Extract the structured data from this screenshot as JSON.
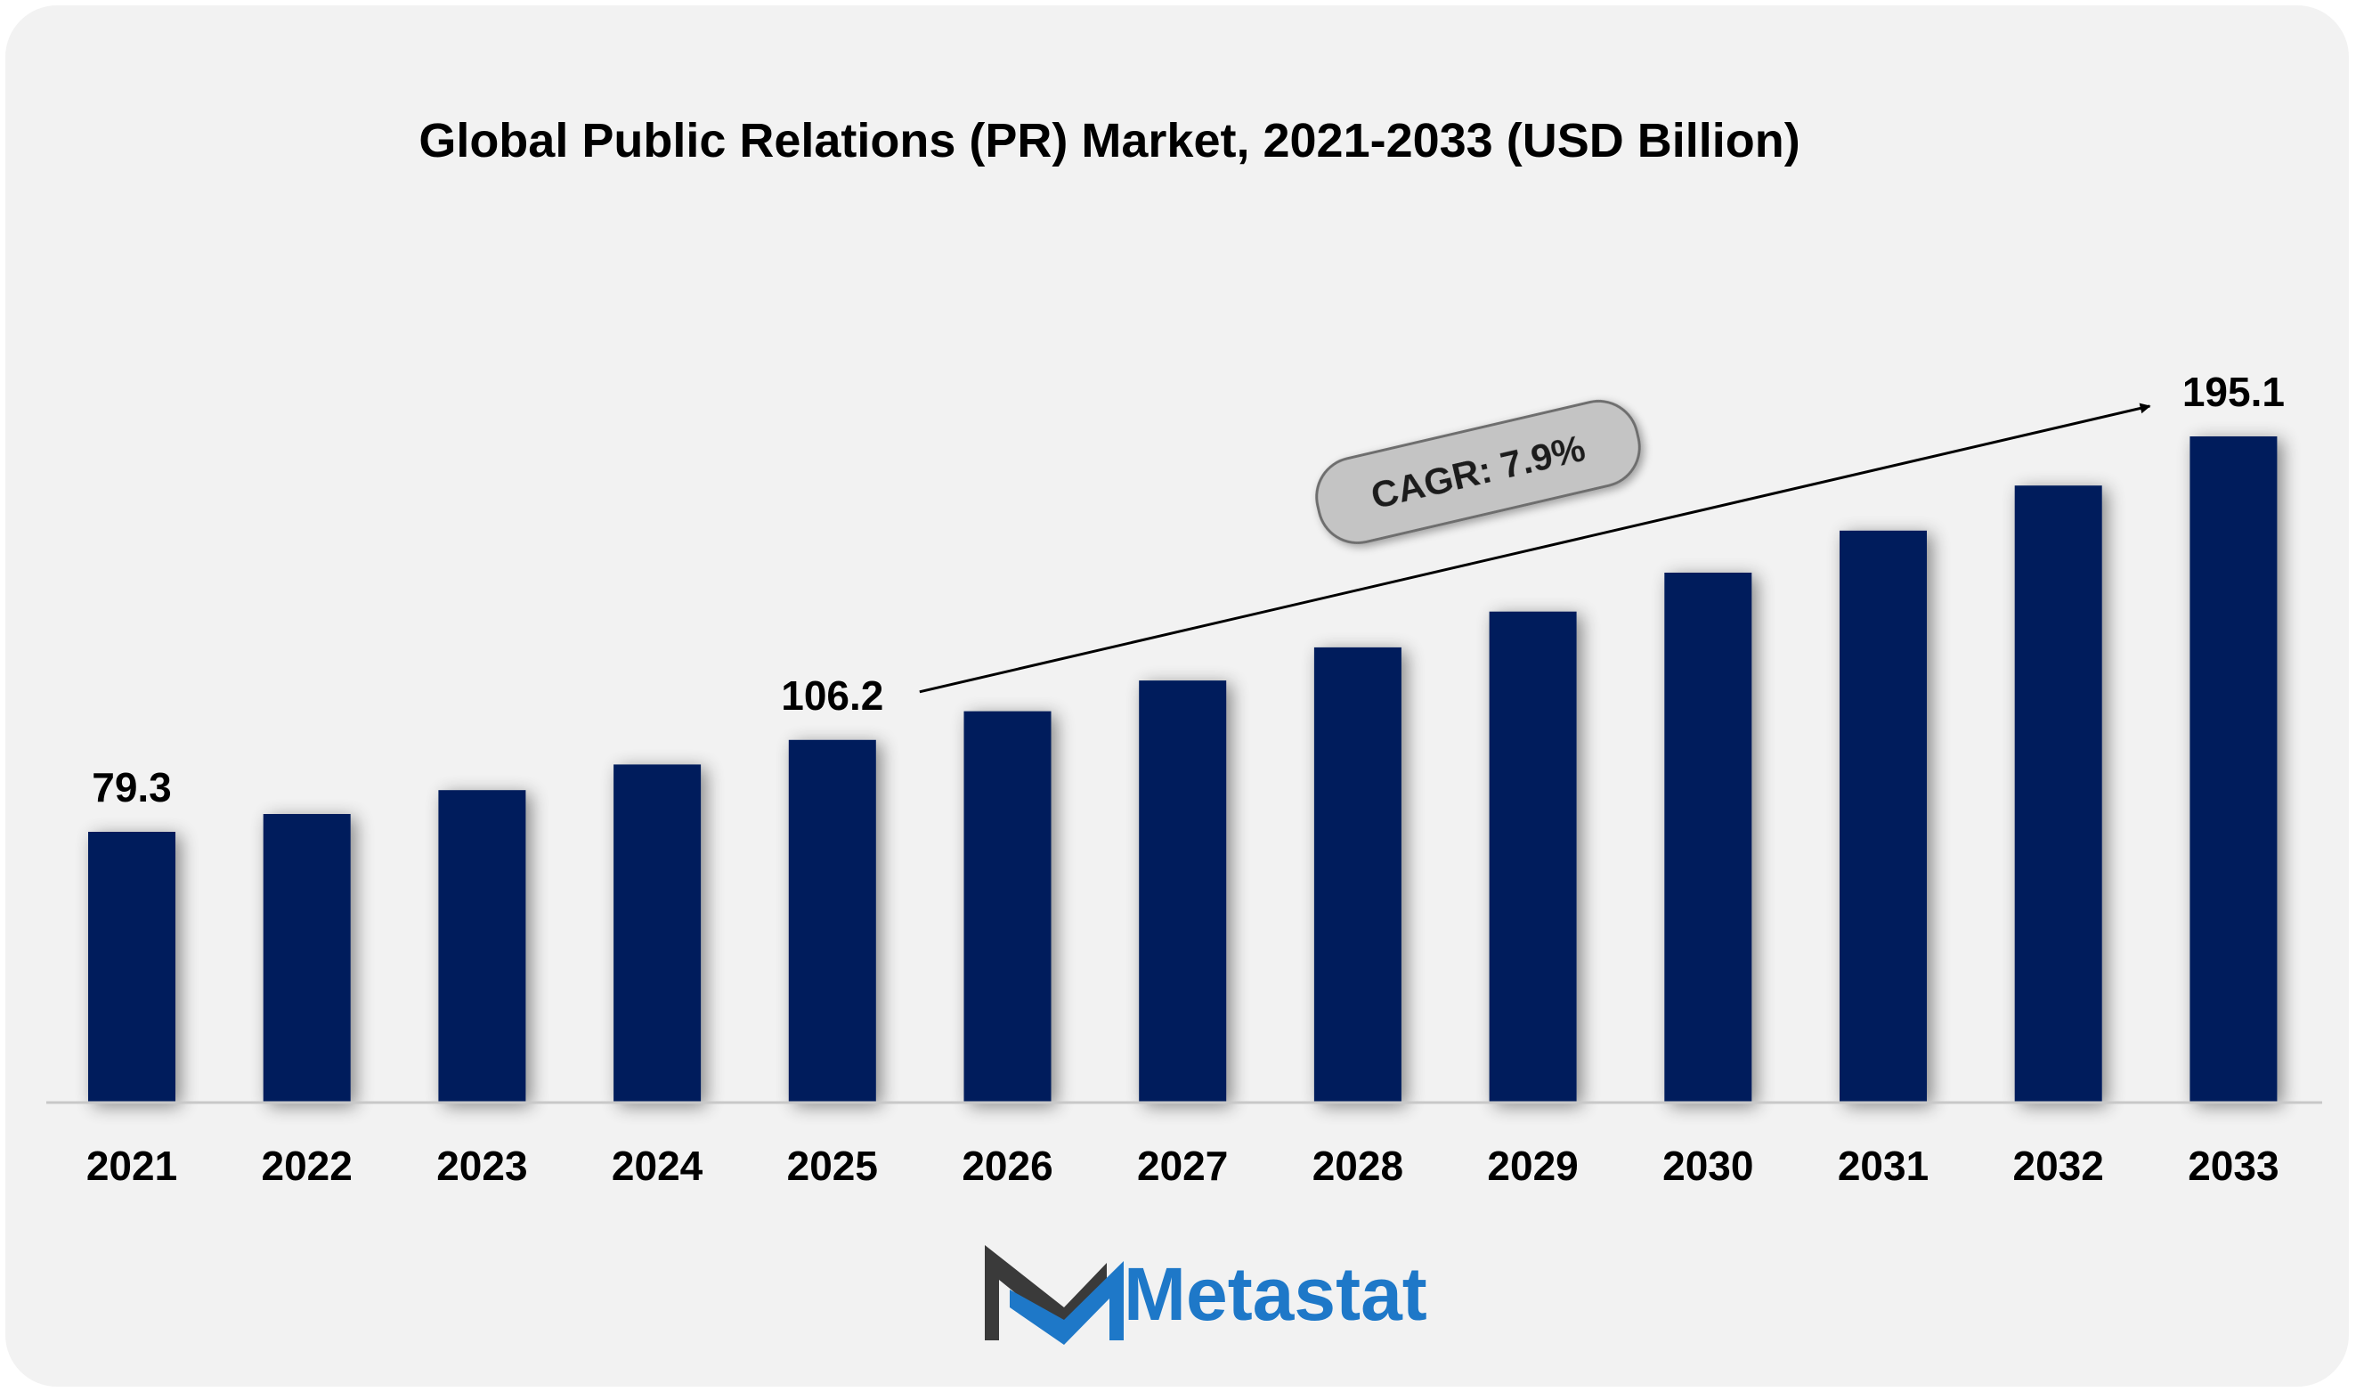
{
  "chart_data": {
    "type": "bar",
    "title": "Global Public Relations (PR) Market, 2021-2033 (USD Billion)",
    "xlabel": "",
    "ylabel": "",
    "categories": [
      "2021",
      "2022",
      "2023",
      "2024",
      "2025",
      "2026",
      "2027",
      "2028",
      "2029",
      "2030",
      "2031",
      "2032",
      "2033"
    ],
    "values": [
      79.3,
      84.5,
      91.5,
      99.0,
      106.2,
      114.6,
      123.6,
      133.3,
      143.8,
      155.2,
      167.5,
      180.7,
      195.1
    ],
    "data_labels": [
      {
        "category": "2021",
        "text": "79.3"
      },
      {
        "category": "2025",
        "text": "106.2"
      },
      {
        "category": "2033",
        "text": "195.1"
      }
    ],
    "ylim": [
      0,
      210
    ],
    "grid": false,
    "legend": "none",
    "bar_color": "#001f5c",
    "annotation": {
      "text": "CAGR: 7.9%",
      "from": "2025",
      "to": "2033"
    }
  },
  "logo": {
    "name": "Metastat",
    "text_color": "#1e78c8",
    "mark_dark": "#3a3a3a",
    "mark_blue": "#1e78c8"
  },
  "colors": {
    "background": "#f2f2f2",
    "axis": "#c8c8c8",
    "badge_fill": "#c4c4c4",
    "badge_stroke": "#6e6e6e"
  }
}
